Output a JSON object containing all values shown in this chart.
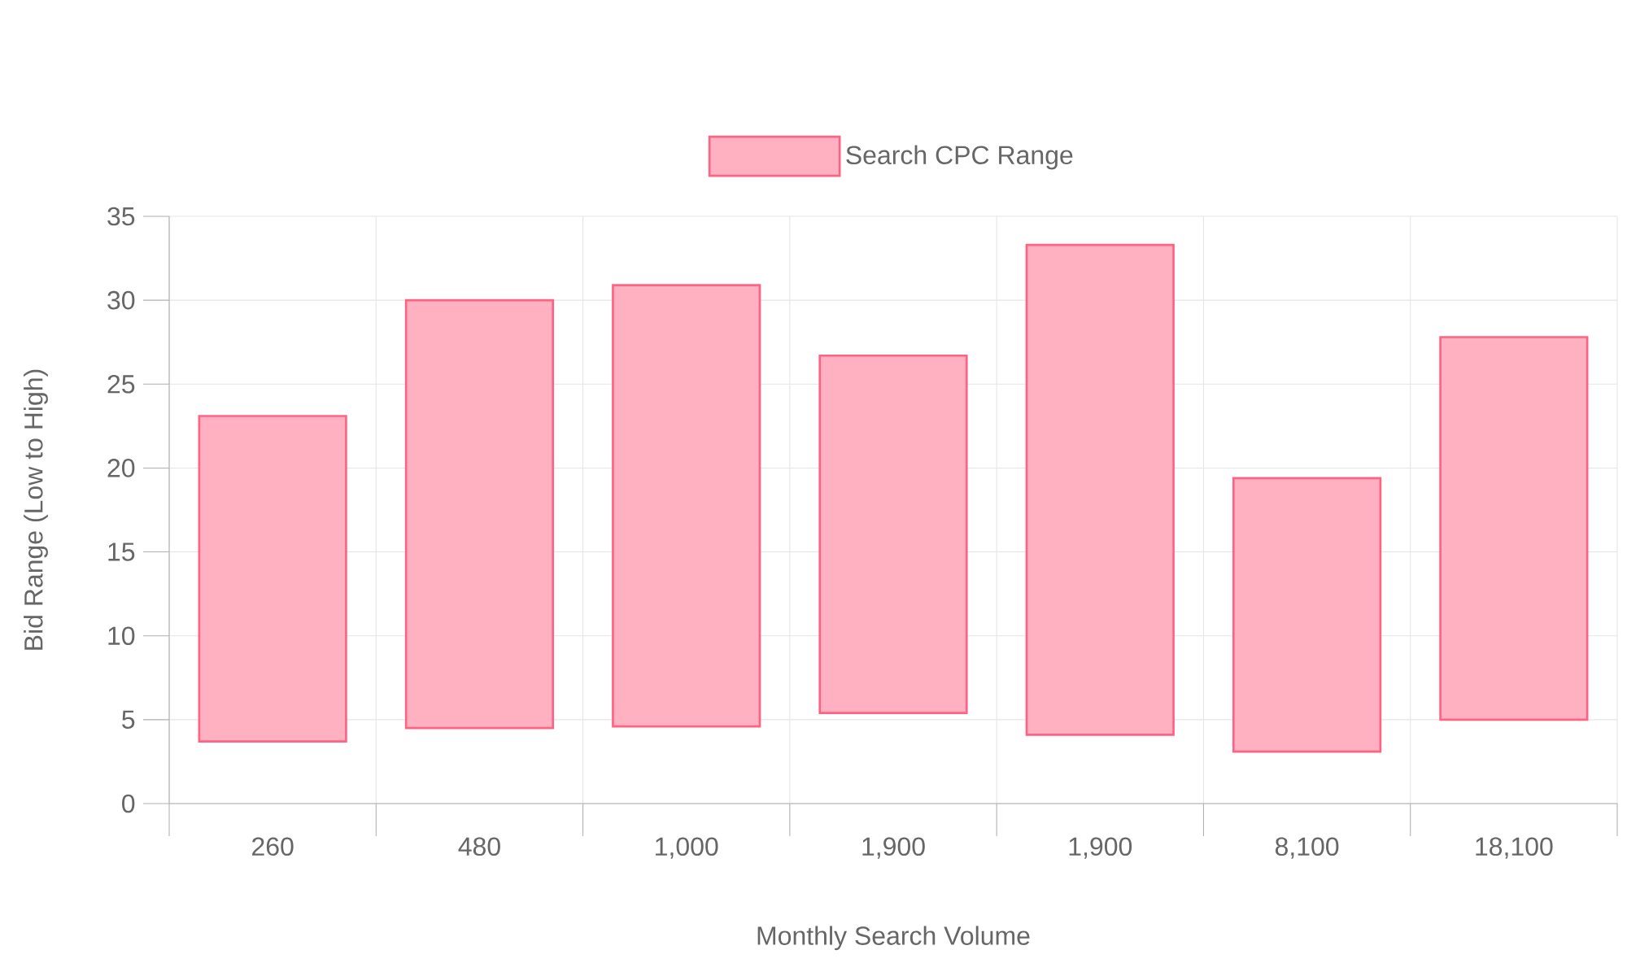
{
  "chart_data": {
    "type": "bar",
    "xlabel": "Monthly Search Volume",
    "ylabel": "Bid Range (Low to High)",
    "categories": [
      "260",
      "480",
      "1,000",
      "1,900",
      "1,900",
      "8,100",
      "18,100"
    ],
    "series": [
      {
        "name": "Search CPC Range",
        "color": "#ffb1c1",
        "values": [
          19.4,
          25.5,
          26.3,
          21.3,
          29.2,
          16.3,
          22.8
        ],
        "base": [
          3.7,
          4.5,
          4.6,
          5.4,
          4.1,
          3.1,
          5.0
        ]
      }
    ],
    "ylim": [
      0,
      35
    ],
    "yticks": [
      0,
      5,
      10,
      15,
      20,
      25,
      30,
      35
    ],
    "grid": true,
    "legend": "top"
  }
}
